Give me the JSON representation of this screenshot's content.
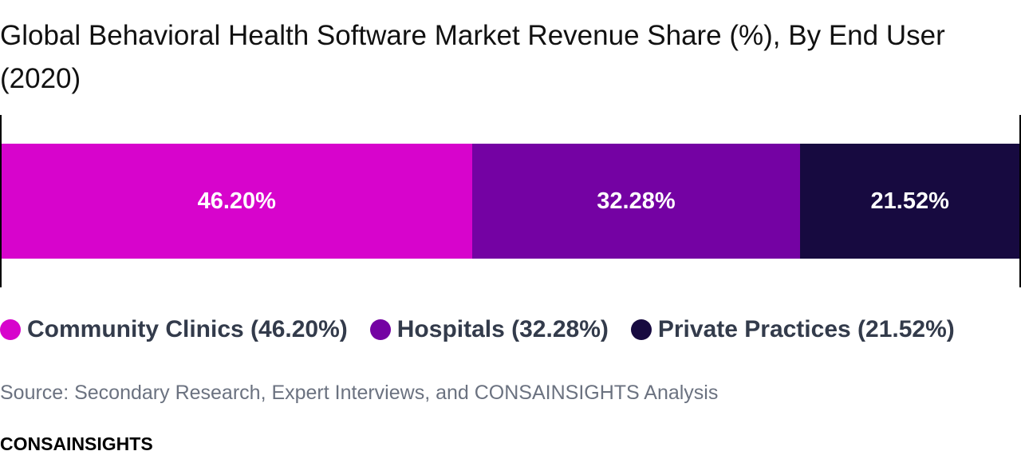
{
  "chart_data": {
    "type": "bar",
    "orientation": "horizontal-stacked",
    "title": "Global Behavioral Health Software Market Revenue Share (%), By End User (2020)",
    "unit": "%",
    "xlim": [
      0,
      100
    ],
    "series": [
      {
        "name": "Community Clinics",
        "value": 46.2,
        "label": "46.20%",
        "legend": "Community Clinics (46.20%)",
        "color": "#d704cc"
      },
      {
        "name": "Hospitals",
        "value": 32.28,
        "label": "32.28%",
        "legend": "Hospitals (32.28%)",
        "color": "#7402a3"
      },
      {
        "name": "Private Practices",
        "value": 21.52,
        "label": "21.52%",
        "legend": "Private Practices (21.52%)",
        "color": "#170a40"
      }
    ],
    "legend_position": "bottom"
  },
  "source": "Source: Secondary Research, Expert Interviews, and CONSAINSIGHTS Analysis",
  "brand": "CONSAINSIGHTS"
}
